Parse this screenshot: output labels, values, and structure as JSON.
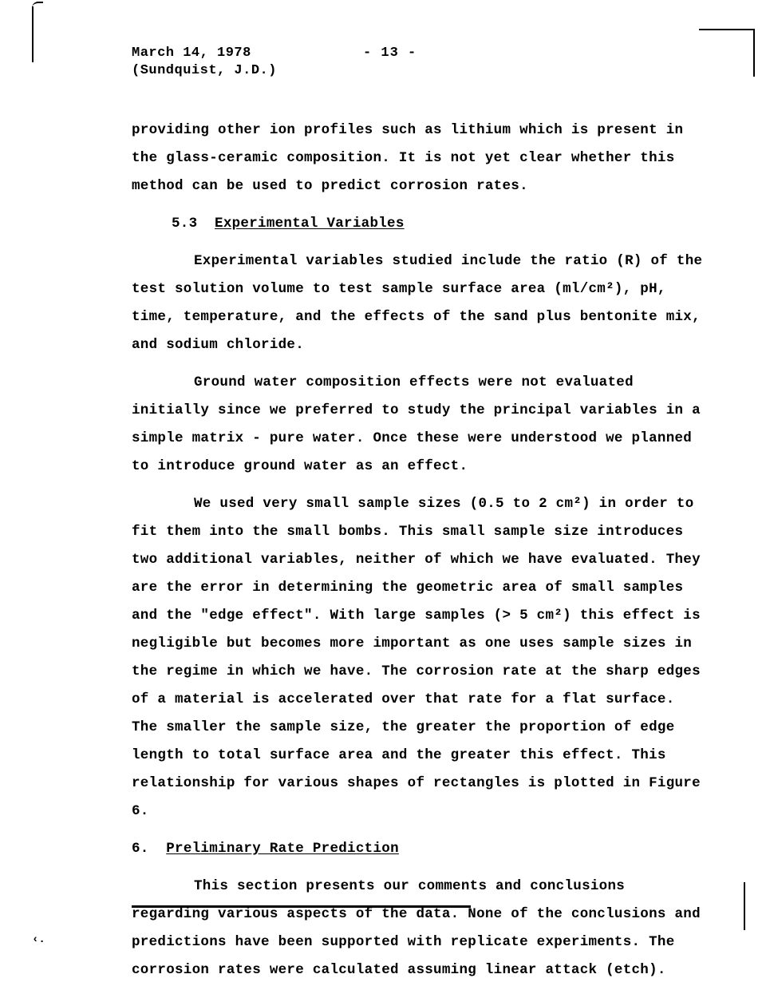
{
  "header": {
    "date": "March 14, 1978",
    "page_number": "- 13 -",
    "author": "(Sundquist, J.D.)"
  },
  "paragraphs": {
    "intro": "providing other ion profiles such as lithium which is present in the glass-ceramic composition.  It is not yet clear whether this method can be used to predict corrosion rates.",
    "section_5_3_num": "5.3",
    "section_5_3_title": "Experimental Variables",
    "p1": "Experimental variables studied include the ratio (R) of the test solution volume to test sample surface area (ml/cm²), pH, time, temperature, and the effects of the sand plus bentonite mix, and sodium chloride.",
    "p2": "Ground water composition effects were not evaluated initially since we preferred to study the principal variables in a simple matrix - pure water.  Once these were understood we planned to introduce ground water as an effect.",
    "p3": "We used very small sample sizes (0.5 to 2 cm²) in order to fit them into the small bombs. This small sample size introduces two additional variables, neither of which we have evaluated.  They are the error in determining the geometric area of small samples and the \"edge effect\".  With large samples (> 5 cm²) this effect is negligible but becomes more important as one uses sample sizes in the regime in which we have.  The corrosion rate at the sharp edges of a material is accelerated over that rate for a flat surface.  The smaller the sample size, the greater the proportion of edge length to total surface area and the greater this effect. This relationship for various shapes of rectangles is plotted in Figure 6.",
    "section_6_num": "6.",
    "section_6_title": "Preliminary Rate Prediction",
    "p4": "This section presents our comments and conclusions regarding various aspects of the data.  None of the conclusions and predictions have been supported with replicate experiments. The corrosion rates were calculated assuming linear attack (etch)."
  },
  "marks": {
    "bottom_left": "‹."
  }
}
